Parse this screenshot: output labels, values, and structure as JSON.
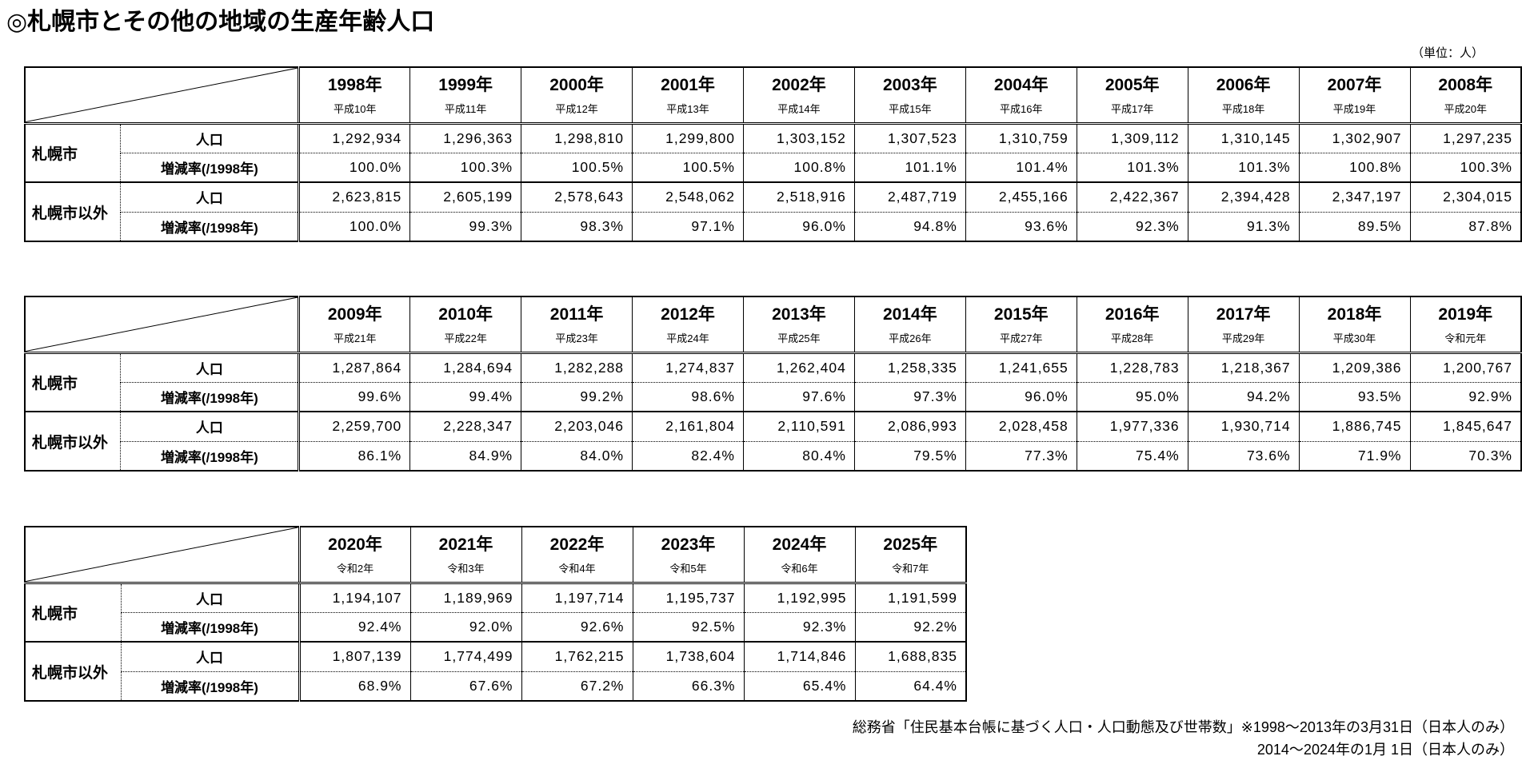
{
  "page": {
    "title": "◎札幌市とその他の地域の生産年齢人口",
    "unit_note": "（単位：人）",
    "source_note": {
      "line1": "総務省「住民基本台帳に基づく人口・人口動態及び世帯数」※1998～2013年の3月31日（日本人のみ）",
      "line2": "2014～2024年の1月 1日（日本人のみ）"
    }
  },
  "labels": {
    "sapporo": "札幌市",
    "other_than_sapporo": "札幌市以外",
    "population": "人口",
    "change_rate": "増減率(/1998年)"
  },
  "colors": {
    "border": "#000000",
    "text": "#000000",
    "background": "#ffffff"
  },
  "tables": [
    {
      "name": "1998-2008",
      "columns": [
        {
          "year": "1998年",
          "era": "平成10年"
        },
        {
          "year": "1999年",
          "era": "平成11年"
        },
        {
          "year": "2000年",
          "era": "平成12年"
        },
        {
          "year": "2001年",
          "era": "平成13年"
        },
        {
          "year": "2002年",
          "era": "平成14年"
        },
        {
          "year": "2003年",
          "era": "平成15年"
        },
        {
          "year": "2004年",
          "era": "平成16年"
        },
        {
          "year": "2005年",
          "era": "平成17年"
        },
        {
          "year": "2006年",
          "era": "平成18年"
        },
        {
          "year": "2007年",
          "era": "平成19年"
        },
        {
          "year": "2008年",
          "era": "平成20年"
        }
      ],
      "rows": {
        "sapporo_population": [
          "1,292,934",
          "1,296,363",
          "1,298,810",
          "1,299,800",
          "1,303,152",
          "1,307,523",
          "1,310,759",
          "1,309,112",
          "1,310,145",
          "1,302,907",
          "1,297,235"
        ],
        "sapporo_change_rate": [
          "100.0%",
          "100.3%",
          "100.5%",
          "100.5%",
          "100.8%",
          "101.1%",
          "101.4%",
          "101.3%",
          "101.3%",
          "100.8%",
          "100.3%"
        ],
        "other_population": [
          "2,623,815",
          "2,605,199",
          "2,578,643",
          "2,548,062",
          "2,518,916",
          "2,487,719",
          "2,455,166",
          "2,422,367",
          "2,394,428",
          "2,347,197",
          "2,304,015"
        ],
        "other_change_rate": [
          "100.0%",
          "99.3%",
          "98.3%",
          "97.1%",
          "96.0%",
          "94.8%",
          "93.6%",
          "92.3%",
          "91.3%",
          "89.5%",
          "87.8%"
        ]
      }
    },
    {
      "name": "2009-2019",
      "columns": [
        {
          "year": "2009年",
          "era": "平成21年"
        },
        {
          "year": "2010年",
          "era": "平成22年"
        },
        {
          "year": "2011年",
          "era": "平成23年"
        },
        {
          "year": "2012年",
          "era": "平成24年"
        },
        {
          "year": "2013年",
          "era": "平成25年"
        },
        {
          "year": "2014年",
          "era": "平成26年"
        },
        {
          "year": "2015年",
          "era": "平成27年"
        },
        {
          "year": "2016年",
          "era": "平成28年"
        },
        {
          "year": "2017年",
          "era": "平成29年"
        },
        {
          "year": "2018年",
          "era": "平成30年"
        },
        {
          "year": "2019年",
          "era": "令和元年"
        }
      ],
      "rows": {
        "sapporo_population": [
          "1,287,864",
          "1,284,694",
          "1,282,288",
          "1,274,837",
          "1,262,404",
          "1,258,335",
          "1,241,655",
          "1,228,783",
          "1,218,367",
          "1,209,386",
          "1,200,767"
        ],
        "sapporo_change_rate": [
          "99.6%",
          "99.4%",
          "99.2%",
          "98.6%",
          "97.6%",
          "97.3%",
          "96.0%",
          "95.0%",
          "94.2%",
          "93.5%",
          "92.9%"
        ],
        "other_population": [
          "2,259,700",
          "2,228,347",
          "2,203,046",
          "2,161,804",
          "2,110,591",
          "2,086,993",
          "2,028,458",
          "1,977,336",
          "1,930,714",
          "1,886,745",
          "1,845,647"
        ],
        "other_change_rate": [
          "86.1%",
          "84.9%",
          "84.0%",
          "82.4%",
          "80.4%",
          "79.5%",
          "77.3%",
          "75.4%",
          "73.6%",
          "71.9%",
          "70.3%"
        ]
      }
    },
    {
      "name": "2020-2025",
      "columns": [
        {
          "year": "2020年",
          "era": "令和2年"
        },
        {
          "year": "2021年",
          "era": "令和3年"
        },
        {
          "year": "2022年",
          "era": "令和4年"
        },
        {
          "year": "2023年",
          "era": "令和5年"
        },
        {
          "year": "2024年",
          "era": "令和6年"
        },
        {
          "year": "2025年",
          "era": "令和7年"
        }
      ],
      "rows": {
        "sapporo_population": [
          "1,194,107",
          "1,189,969",
          "1,197,714",
          "1,195,737",
          "1,192,995",
          "1,191,599"
        ],
        "sapporo_change_rate": [
          "92.4%",
          "92.0%",
          "92.6%",
          "92.5%",
          "92.3%",
          "92.2%"
        ],
        "other_population": [
          "1,807,139",
          "1,774,499",
          "1,762,215",
          "1,738,604",
          "1,714,846",
          "1,688,835"
        ],
        "other_change_rate": [
          "68.9%",
          "67.6%",
          "67.2%",
          "66.3%",
          "65.4%",
          "64.4%"
        ]
      }
    }
  ]
}
